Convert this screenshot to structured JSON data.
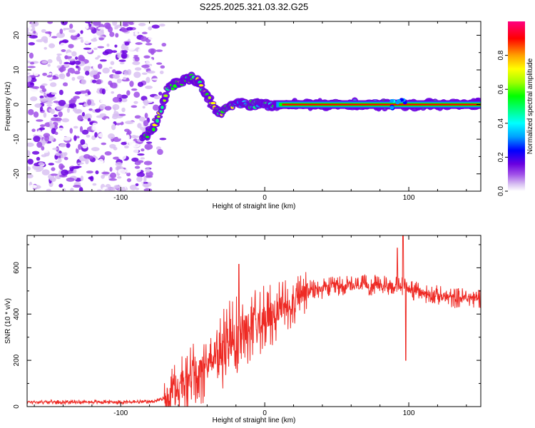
{
  "title": "S225.2025.321.03.32.G25",
  "chart_data": [
    {
      "type": "heatmap",
      "name": "spectrogram",
      "xlabel": "Height of straight line (km)",
      "ylabel": "Frequency (Hz)",
      "xlim": [
        -165,
        150
      ],
      "ylim": [
        -25,
        24
      ],
      "xticks": [
        -100,
        0,
        100
      ],
      "yticks": [
        -20,
        -10,
        0,
        10,
        20
      ],
      "colorbar": {
        "label": "Normalized spectral amplitude",
        "range": [
          0,
          1
        ],
        "ticks": [
          "0.0",
          "0.2",
          "0.4",
          "0.6",
          "0.8"
        ],
        "colors": [
          "#ffffff",
          "#d9c2f2",
          "#a050e8",
          "#6a00e0",
          "#0000ff",
          "#00a0ff",
          "#00ffff",
          "#00ff80",
          "#00ff00",
          "#a0ff00",
          "#ffff00",
          "#ffa000",
          "#ff0000",
          "#ff0080"
        ]
      },
      "features": {
        "noise_region_km": [
          -165,
          -80
        ],
        "signal_track": [
          {
            "x": -85,
            "y": -10
          },
          {
            "x": -78,
            "y": -7
          },
          {
            "x": -72,
            "y": -2
          },
          {
            "x": -68,
            "y": 4
          },
          {
            "x": -62,
            "y": 6
          },
          {
            "x": -55,
            "y": 7
          },
          {
            "x": -50,
            "y": 8
          },
          {
            "x": -45,
            "y": 6
          },
          {
            "x": -40,
            "y": 3
          },
          {
            "x": -35,
            "y": -1
          },
          {
            "x": -30,
            "y": -2
          },
          {
            "x": -20,
            "y": 0
          },
          {
            "x": -10,
            "y": 0
          },
          {
            "x": 10,
            "y": 0
          },
          {
            "x": 150,
            "y": 0
          }
        ],
        "steady_line": {
          "x_start": 10,
          "x_end": 150,
          "frequency": 0,
          "peak_amplitude": 0.9
        }
      }
    },
    {
      "type": "line",
      "name": "snr",
      "xlabel": "Height of straight line (km)",
      "ylabel": "SNR (10 * v/v)",
      "xlim": [
        -165,
        150
      ],
      "ylim": [
        0,
        740
      ],
      "xticks": [
        -100,
        0,
        100
      ],
      "yticks": [
        0,
        200,
        400,
        600
      ],
      "color": "#ee2a24",
      "envelope": [
        {
          "x": -165,
          "y": 20
        },
        {
          "x": -80,
          "y": 20
        },
        {
          "x": -65,
          "y": 40
        },
        {
          "x": -55,
          "y": 120
        },
        {
          "x": -45,
          "y": 160
        },
        {
          "x": -35,
          "y": 230
        },
        {
          "x": -25,
          "y": 270
        },
        {
          "x": -15,
          "y": 330
        },
        {
          "x": -5,
          "y": 370
        },
        {
          "x": 5,
          "y": 400
        },
        {
          "x": 15,
          "y": 440
        },
        {
          "x": 30,
          "y": 500
        },
        {
          "x": 50,
          "y": 520
        },
        {
          "x": 80,
          "y": 525
        },
        {
          "x": 95,
          "y": 520
        },
        {
          "x": 110,
          "y": 490
        },
        {
          "x": 130,
          "y": 470
        },
        {
          "x": 150,
          "y": 470
        }
      ],
      "peaks": [
        {
          "x": -18,
          "y": 615
        },
        {
          "x": 92,
          "y": 685
        },
        {
          "x": 96,
          "y": 740
        },
        {
          "x": 98,
          "y": 620
        }
      ],
      "dips": [
        {
          "x": 98,
          "y": 200
        }
      ]
    }
  ]
}
